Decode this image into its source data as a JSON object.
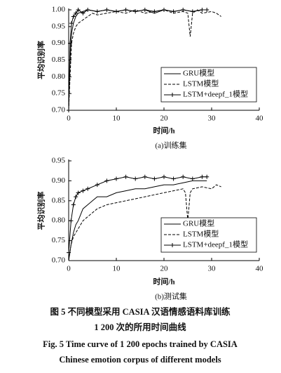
{
  "chart_data": [
    {
      "type": "line",
      "caption": "(a)训练集",
      "xlabel": "时间/h",
      "ylabel": "平均识别率",
      "xlim": [
        0,
        40
      ],
      "xticks": [
        0,
        10,
        20,
        30,
        40
      ],
      "ylim": [
        0.7,
        1.0
      ],
      "yticks": [
        {
          "value": 0.7,
          "label": "0.70"
        },
        {
          "value": 0.75,
          "label": "0.75"
        },
        {
          "value": 0.8,
          "label": "0.80"
        },
        {
          "value": 0.85,
          "label": "0.85"
        },
        {
          "value": 0.9,
          "label": "0.90"
        },
        {
          "value": 0.95,
          "label": "0.95"
        },
        {
          "value": 1.0,
          "label": "1.00"
        }
      ],
      "legend": "lower right",
      "series": [
        {
          "name": "GRU模型",
          "color": "#000000",
          "linestyle": "solid",
          "x": [
            0,
            0.3,
            0.6,
            1,
            1.5,
            2,
            3,
            4,
            6,
            8,
            10,
            12,
            14,
            16,
            18,
            20,
            22,
            24,
            26,
            28
          ],
          "values": [
            0.7,
            0.85,
            0.93,
            0.96,
            0.98,
            0.99,
            0.995,
            1.0,
            0.995,
            1.0,
            0.995,
            1.0,
            0.995,
            1.0,
            0.99,
            1.0,
            0.995,
            1.0,
            0.995,
            1.0
          ]
        },
        {
          "name": "LSTM模型",
          "color": "#000000",
          "linestyle": "dashed",
          "x": [
            0,
            0.3,
            0.6,
            1,
            1.5,
            2,
            3,
            4,
            5,
            6,
            8,
            10,
            12,
            14,
            16,
            18,
            20,
            22,
            24,
            25,
            25.5,
            26,
            27,
            28,
            30,
            31,
            32
          ],
          "values": [
            0.7,
            0.8,
            0.9,
            0.93,
            0.95,
            0.96,
            0.97,
            0.98,
            0.99,
            0.985,
            0.99,
            0.995,
            0.99,
            1.0,
            0.99,
            0.995,
            1.0,
            0.99,
            0.995,
            0.99,
            0.92,
            0.99,
            1.0,
            0.99,
            0.995,
            0.99,
            0.98
          ]
        },
        {
          "name": "LSTM+deepf_1模型",
          "color": "#000000",
          "linestyle": "solid",
          "marker": "+",
          "x": [
            0,
            0.3,
            0.6,
            1,
            1.5,
            2,
            3,
            4,
            6,
            8,
            10,
            12,
            14,
            16,
            18,
            20,
            22,
            24,
            26,
            28,
            29
          ],
          "values": [
            0.7,
            0.9,
            0.96,
            0.98,
            0.99,
            1.0,
            0.99,
            1.0,
            0.995,
            1.0,
            0.995,
            1.0,
            0.995,
            1.0,
            0.995,
            1.0,
            0.995,
            1.0,
            0.995,
            1.0,
            1.0
          ]
        }
      ]
    },
    {
      "type": "line",
      "caption": "(b)测试集",
      "xlabel": "时间/h",
      "ylabel": "平均识别率",
      "xlim": [
        0,
        40
      ],
      "xticks": [
        0,
        10,
        20,
        30,
        40
      ],
      "ylim": [
        0.7,
        0.95
      ],
      "yticks": [
        {
          "value": 0.7,
          "label": "0.70"
        },
        {
          "value": 0.75,
          "label": "0.75"
        },
        {
          "value": 0.8,
          "label": "0.80"
        },
        {
          "value": 0.85,
          "label": "0.85"
        },
        {
          "value": 0.9,
          "label": "0.90"
        },
        {
          "value": 0.95,
          "label": "0.95"
        }
      ],
      "legend": "lower right",
      "series": [
        {
          "name": "GRU模型",
          "color": "#000000",
          "linestyle": "solid",
          "x": [
            0,
            0.5,
            1,
            1.5,
            2,
            3,
            4,
            5,
            6,
            8,
            10,
            12,
            14,
            16,
            18,
            20,
            22,
            24,
            26,
            28,
            29
          ],
          "values": [
            0.7,
            0.74,
            0.77,
            0.79,
            0.8,
            0.83,
            0.84,
            0.85,
            0.86,
            0.86,
            0.87,
            0.875,
            0.88,
            0.88,
            0.885,
            0.89,
            0.89,
            0.895,
            0.9,
            0.9,
            0.9
          ]
        },
        {
          "name": "LSTM模型",
          "color": "#000000",
          "linestyle": "dashed",
          "x": [
            0,
            0.5,
            1,
            2,
            3,
            4,
            5,
            6,
            8,
            10,
            12,
            14,
            16,
            18,
            20,
            22,
            24,
            24.5,
            25,
            25.5,
            26,
            28,
            30,
            31,
            32
          ],
          "values": [
            0.7,
            0.74,
            0.76,
            0.78,
            0.8,
            0.81,
            0.82,
            0.83,
            0.84,
            0.845,
            0.85,
            0.855,
            0.86,
            0.865,
            0.87,
            0.875,
            0.88,
            0.87,
            0.8,
            0.87,
            0.88,
            0.885,
            0.88,
            0.89,
            0.885
          ]
        },
        {
          "name": "LSTM+deepf_1模型",
          "color": "#000000",
          "linestyle": "solid",
          "marker": "+",
          "x": [
            0,
            0.5,
            1,
            1.5,
            2,
            3,
            4,
            6,
            8,
            10,
            12,
            14,
            16,
            18,
            20,
            22,
            24,
            26,
            28,
            29
          ],
          "values": [
            0.72,
            0.8,
            0.84,
            0.86,
            0.87,
            0.875,
            0.88,
            0.89,
            0.9,
            0.905,
            0.91,
            0.905,
            0.91,
            0.905,
            0.91,
            0.905,
            0.91,
            0.905,
            0.91,
            0.91
          ]
        }
      ]
    }
  ],
  "caption_cn": [
    "图 5   不同模型采用 CASIA 汉语情感语料库训练",
    "1 200 次的所用时间曲线"
  ],
  "caption_en": [
    "Fig. 5   Time curve of 1 200 epochs trained by CASIA",
    "Chinese emotion corpus of different models"
  ]
}
